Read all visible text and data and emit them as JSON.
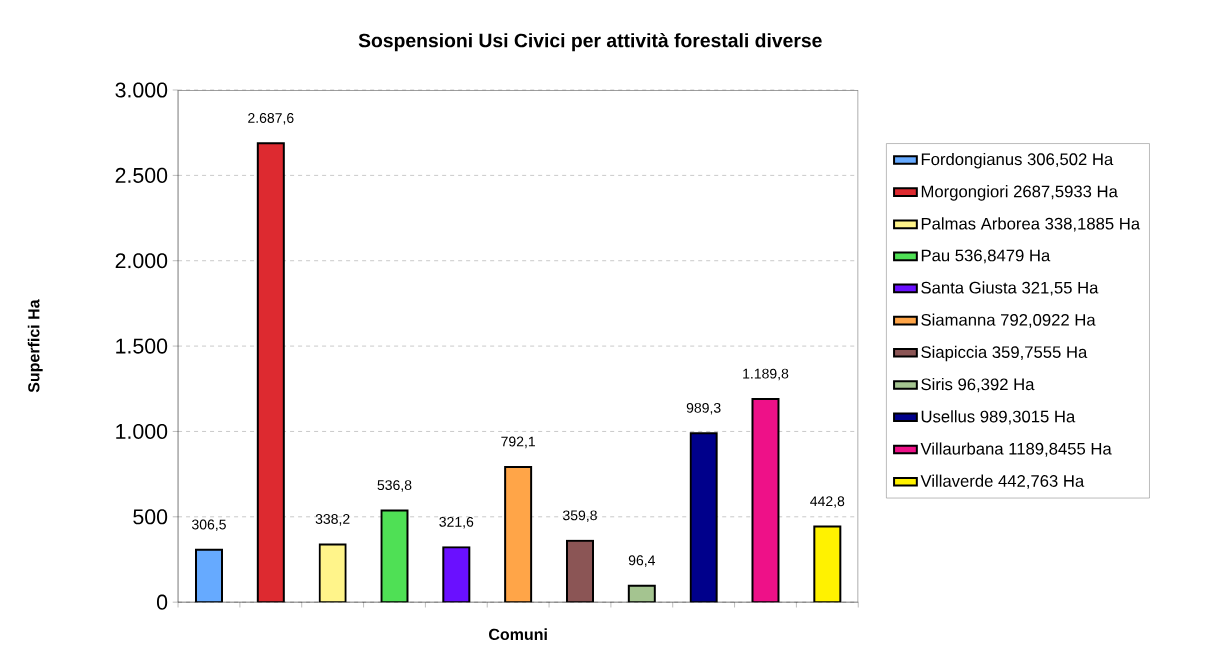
{
  "chart_data": {
    "type": "bar",
    "title": "Sospensioni Usi Civici per attività forestali diverse",
    "xlabel": "Comuni",
    "ylabel": "Superfici  Ha",
    "categories": [
      null,
      null,
      null,
      null,
      null,
      null,
      null,
      null,
      null,
      null,
      null
    ],
    "series": [
      {
        "name": "Fordongianus 306,502 Ha",
        "color": "#66aaff",
        "values": [
          306.502,
          null,
          null,
          null,
          null,
          null,
          null,
          null,
          null,
          null,
          null
        ],
        "value_labels": [
          "306,5",
          null,
          null,
          null,
          null,
          null,
          null,
          null,
          null,
          null,
          null
        ]
      },
      {
        "name": "Morgongiori 2687,5933 Ha",
        "color": "#dd2a30",
        "values": [
          null,
          2687.5933,
          null,
          null,
          null,
          null,
          null,
          null,
          null,
          null,
          null
        ],
        "value_labels": [
          null,
          "2.687,6",
          null,
          null,
          null,
          null,
          null,
          null,
          null,
          null,
          null
        ]
      },
      {
        "name": "Palmas Arborea 338,1885 Ha",
        "color": "#fff48a",
        "values": [
          null,
          null,
          338.1885,
          null,
          null,
          null,
          null,
          null,
          null,
          null,
          null
        ],
        "value_labels": [
          null,
          null,
          "338,2",
          null,
          null,
          null,
          null,
          null,
          null,
          null,
          null
        ]
      },
      {
        "name": "Pau 536,8479 Ha",
        "color": "#4fe055",
        "values": [
          null,
          null,
          null,
          536.8479,
          null,
          null,
          null,
          null,
          null,
          null,
          null
        ],
        "value_labels": [
          null,
          null,
          null,
          "536,8",
          null,
          null,
          null,
          null,
          null,
          null,
          null
        ]
      },
      {
        "name": "Santa Giusta 321,55 Ha",
        "color": "#6a10ff",
        "values": [
          null,
          null,
          null,
          null,
          321.55,
          null,
          null,
          null,
          null,
          null,
          null
        ],
        "value_labels": [
          null,
          null,
          null,
          null,
          "321,6",
          null,
          null,
          null,
          null,
          null,
          null
        ]
      },
      {
        "name": "Siamanna 792,0922 Ha",
        "color": "#ffa548",
        "values": [
          null,
          null,
          null,
          null,
          null,
          792.0922,
          null,
          null,
          null,
          null,
          null
        ],
        "value_labels": [
          null,
          null,
          null,
          null,
          null,
          "792,1",
          null,
          null,
          null,
          null,
          null
        ]
      },
      {
        "name": "Siapiccia 359,7555 Ha",
        "color": "#8b5555",
        "values": [
          null,
          null,
          null,
          null,
          null,
          null,
          359.7555,
          null,
          null,
          null,
          null
        ],
        "value_labels": [
          null,
          null,
          null,
          null,
          null,
          null,
          "359,8",
          null,
          null,
          null,
          null
        ]
      },
      {
        "name": "Siris 96,392 Ha",
        "color": "#a4c490",
        "values": [
          null,
          null,
          null,
          null,
          null,
          null,
          null,
          96.392,
          null,
          null,
          null
        ],
        "value_labels": [
          null,
          null,
          null,
          null,
          null,
          null,
          null,
          "96,4",
          null,
          null,
          null
        ]
      },
      {
        "name": "Usellus 989,3015 Ha",
        "color": "#00008b",
        "values": [
          null,
          null,
          null,
          null,
          null,
          null,
          null,
          null,
          989.3015,
          null,
          null
        ],
        "value_labels": [
          null,
          null,
          null,
          null,
          null,
          null,
          null,
          null,
          "989,3",
          null,
          null
        ]
      },
      {
        "name": "Villaurbana 1189,8455 Ha",
        "color": "#ee1188",
        "values": [
          null,
          null,
          null,
          null,
          null,
          null,
          null,
          null,
          null,
          1189.8455,
          null
        ],
        "value_labels": [
          null,
          null,
          null,
          null,
          null,
          null,
          null,
          null,
          null,
          "1.189,8",
          null
        ]
      },
      {
        "name": "Villaverde 442,763 Ha",
        "color": "#fff200",
        "values": [
          null,
          null,
          null,
          null,
          null,
          null,
          null,
          null,
          null,
          null,
          442.763
        ],
        "value_labels": [
          null,
          null,
          null,
          null,
          null,
          null,
          null,
          null,
          null,
          null,
          "442,8"
        ]
      }
    ],
    "ylim": [
      0,
      3000
    ],
    "yticks": [
      0,
      {
        "value": 500,
        "label": "500"
      },
      {
        "value": 1000,
        "label": "1.000"
      },
      {
        "value": 1500,
        "label": "1.500"
      },
      {
        "value": 2000,
        "label": "2.000"
      },
      {
        "value": 2500,
        "label": "2.500"
      },
      {
        "value": 3000,
        "label": "3.000"
      }
    ],
    "grid": "y",
    "legend": "right"
  }
}
